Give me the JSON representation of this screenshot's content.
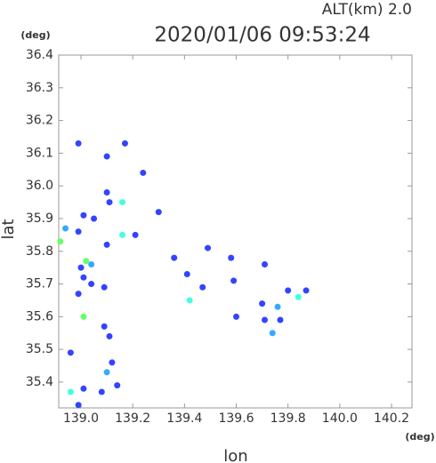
{
  "chart_data": {
    "type": "scatter",
    "title": "2020/01/06 09:53:24",
    "subtitle": "ALT(km) 2.0",
    "y_unit": "(deg)",
    "x_unit": "(deg)",
    "xlabel": "lon",
    "ylabel": "lat",
    "xlim": [
      138.914,
      140.279
    ],
    "ylim": [
      35.321,
      36.4
    ],
    "xticks": [
      {
        "value": 139,
        "label": "139.0"
      },
      {
        "value": 139.2,
        "label": "139.2"
      },
      {
        "value": 139.4,
        "label": "139.4"
      },
      {
        "value": 139.6,
        "label": "139.6"
      },
      {
        "value": 139.8,
        "label": "139.8"
      },
      {
        "value": 140,
        "label": "140.0"
      },
      {
        "value": 140.2,
        "label": "140.2"
      }
    ],
    "yticks": [
      35.4,
      35.5,
      35.6,
      35.7,
      35.8,
      35.9,
      {
        "value": 36,
        "label": "36.0"
      },
      36.1,
      36.2,
      36.3,
      36.4
    ],
    "series": [
      {
        "color": "#3344ff",
        "x": [
          138.99,
          139.1,
          139.17,
          139.24,
          139.1,
          139.11,
          139.3,
          139.01,
          138.99,
          139.21,
          139.1,
          139.0,
          139.01,
          139.04,
          138.99,
          139.09,
          139.36,
          139.49,
          139.58,
          139.59,
          139.71,
          139.7,
          139.8,
          139.87,
          139.71,
          139.77,
          139.6,
          139.47,
          139.09,
          139.11,
          138.96,
          139.12,
          139.14,
          139.01,
          139.08,
          138.99,
          139.05,
          139.41
        ],
        "values": [
          36.13,
          36.09,
          36.13,
          36.04,
          35.98,
          35.95,
          35.92,
          35.91,
          35.86,
          35.85,
          35.82,
          35.75,
          35.72,
          35.7,
          35.67,
          35.69,
          35.78,
          35.81,
          35.78,
          35.71,
          35.76,
          35.64,
          35.68,
          35.68,
          35.59,
          35.59,
          35.6,
          35.69,
          35.57,
          35.54,
          35.49,
          35.46,
          35.39,
          35.38,
          35.37,
          35.33,
          35.9,
          35.73
        ]
      },
      {
        "color": "#33aaff",
        "x": [
          138.94,
          139.04,
          139.76,
          139.74,
          139.1
        ],
        "values": [
          35.87,
          35.76,
          35.63,
          35.55,
          35.43
        ]
      },
      {
        "color": "#44ffdd",
        "x": [
          139.16,
          139.16,
          139.84,
          139.42,
          138.96
        ],
        "values": [
          35.95,
          35.85,
          35.66,
          35.65,
          35.37
        ]
      },
      {
        "color": "#66ff66",
        "x": [
          138.92,
          139.02,
          139.01
        ],
        "values": [
          35.83,
          35.77,
          35.6
        ]
      }
    ]
  }
}
